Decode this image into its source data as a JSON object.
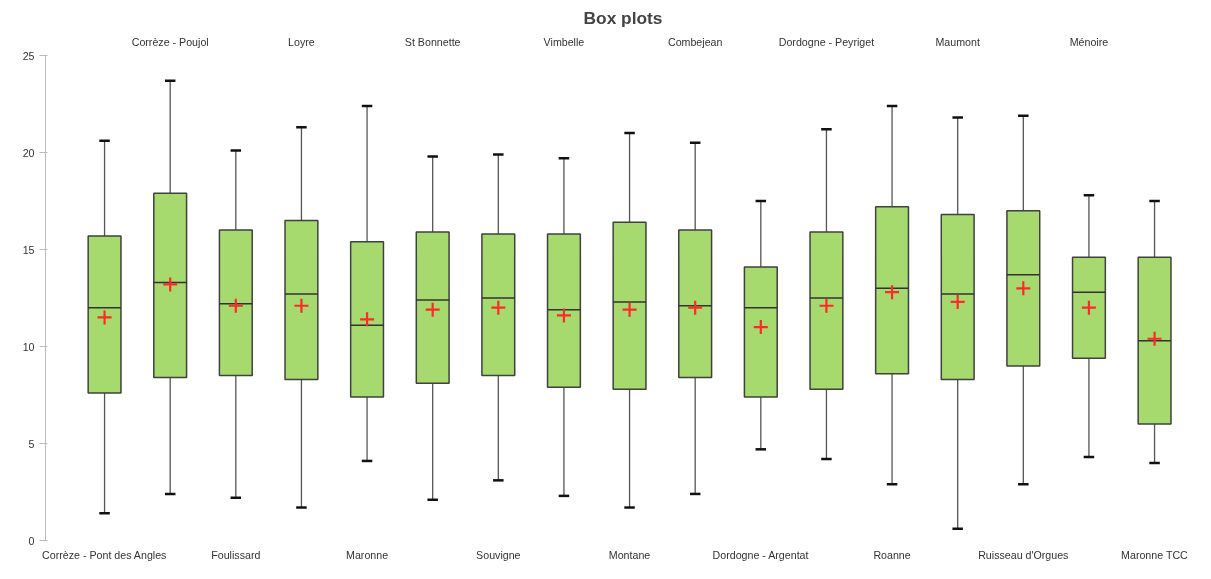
{
  "chart_data": {
    "type": "box",
    "title": "Box plots",
    "categories": [
      "Corrèze - Pont des Angles",
      "Corrèze - Poujol",
      "Foulissard",
      "Loyre",
      "Maronne",
      "St Bonnette",
      "Souvigne",
      "Vimbelle",
      "Montane",
      "Combejean",
      "Dordogne - Argentat",
      "Dordogne - Peyriget",
      "Roanne",
      "Maumont",
      "Ruisseau d'Orgues",
      "Ménoire",
      "Maronne TCC"
    ],
    "color": "#a6d96e",
    "boxes": [
      {
        "low": 1.4,
        "q1": 7.6,
        "median": 12.0,
        "q3": 15.7,
        "high": 20.6,
        "mean": 11.5
      },
      {
        "low": 2.4,
        "q1": 8.4,
        "median": 13.3,
        "q3": 17.9,
        "high": 23.7,
        "mean": 13.2
      },
      {
        "low": 2.2,
        "q1": 8.5,
        "median": 12.2,
        "q3": 16.0,
        "high": 20.1,
        "mean": 12.1
      },
      {
        "low": 1.7,
        "q1": 8.3,
        "median": 12.7,
        "q3": 16.5,
        "high": 21.3,
        "mean": 12.1
      },
      {
        "low": 4.1,
        "q1": 7.4,
        "median": 11.1,
        "q3": 15.4,
        "high": 22.4,
        "mean": 11.4
      },
      {
        "low": 2.1,
        "q1": 8.1,
        "median": 12.4,
        "q3": 15.9,
        "high": 19.8,
        "mean": 11.9
      },
      {
        "low": 3.1,
        "q1": 8.5,
        "median": 12.5,
        "q3": 15.8,
        "high": 19.9,
        "mean": 12.0
      },
      {
        "low": 2.3,
        "q1": 7.9,
        "median": 11.9,
        "q3": 15.8,
        "high": 19.7,
        "mean": 11.6
      },
      {
        "low": 1.7,
        "q1": 7.8,
        "median": 12.3,
        "q3": 16.4,
        "high": 21.0,
        "mean": 11.9
      },
      {
        "low": 2.4,
        "q1": 8.4,
        "median": 12.1,
        "q3": 16.0,
        "high": 20.5,
        "mean": 12.0
      },
      {
        "low": 4.7,
        "q1": 7.4,
        "median": 12.0,
        "q3": 14.1,
        "high": 17.5,
        "mean": 11.0
      },
      {
        "low": 4.2,
        "q1": 7.8,
        "median": 12.5,
        "q3": 15.9,
        "high": 21.2,
        "mean": 12.1
      },
      {
        "low": 2.9,
        "q1": 8.6,
        "median": 13.0,
        "q3": 17.2,
        "high": 22.4,
        "mean": 12.8
      },
      {
        "low": 0.6,
        "q1": 8.3,
        "median": 12.7,
        "q3": 16.8,
        "high": 21.8,
        "mean": 12.3
      },
      {
        "low": 2.9,
        "q1": 9.0,
        "median": 13.7,
        "q3": 17.0,
        "high": 21.9,
        "mean": 13.0
      },
      {
        "low": 4.3,
        "q1": 9.4,
        "median": 12.8,
        "q3": 14.6,
        "high": 17.8,
        "mean": 12.0
      },
      {
        "low": 4.0,
        "q1": 6.0,
        "median": 10.3,
        "q3": 14.6,
        "high": 17.5,
        "mean": 10.4
      }
    ],
    "ylim": [
      0,
      25
    ],
    "yticks": [
      0,
      5,
      10,
      15,
      20,
      25
    ],
    "grid": false
  }
}
